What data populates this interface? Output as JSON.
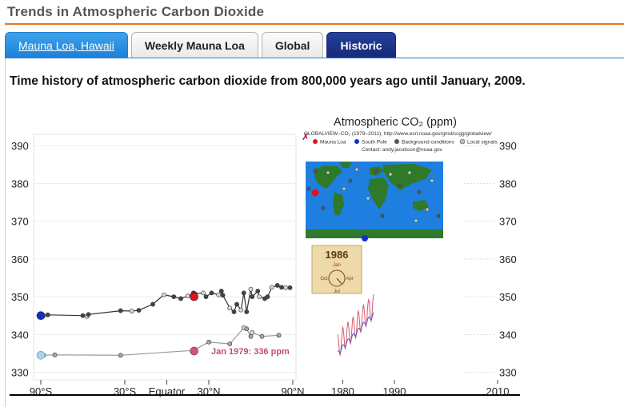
{
  "header": {
    "title": "Trends in Atmospheric Carbon Dioxide"
  },
  "tabs": [
    {
      "label": "Mauna Loa, Hawaii",
      "active": true
    },
    {
      "label": "Weekly Mauna Loa",
      "active": false
    },
    {
      "label": "Global",
      "active": false
    },
    {
      "label": "Historic",
      "active": false
    }
  ],
  "description": "Time history of atmospheric carbon dioxide from 800,000 years ago until January, 2009.",
  "colors": {
    "accent": "#e8731e",
    "tab_active": "#1b7fd6",
    "tab_dark": "#1c338a",
    "red_point": "#e8101a",
    "blue_point": "#1230c8",
    "annotation": "#c0506a",
    "ocean": "#1e7fe0",
    "land": "#2e7a2a",
    "clock_bg": "#eed9a8"
  },
  "chart_data": {
    "type": "line",
    "title": "Atmospheric CO₂ (ppm)",
    "yticks": [
      390,
      380,
      370,
      360,
      350,
      340,
      330
    ],
    "ylim": [
      328,
      393
    ],
    "latitude_axis": {
      "ticks": [
        "90°S",
        "30°S",
        "Equator",
        "30°N",
        "90°N"
      ],
      "tick_values": [
        -90,
        -30,
        0,
        30,
        90
      ],
      "xlim": [
        -90,
        90
      ]
    },
    "time_axis": {
      "ticks": [
        "1980",
        "1990",
        "2010"
      ],
      "tick_values": [
        1980,
        1990,
        2010
      ],
      "xlim": [
        1979,
        2010
      ]
    },
    "series": [
      {
        "name": "",
        "values_lat": [
          -88,
          -85,
          -60,
          -57,
          -56,
          -33,
          -25,
          -20,
          -10,
          -2,
          5,
          10,
          15,
          19,
          20,
          26,
          28,
          32,
          37,
          39,
          40,
          45,
          48,
          50,
          53,
          55,
          57,
          60,
          61,
          65,
          66,
          70,
          72,
          75,
          79,
          82,
          85,
          88
        ],
        "values_ppm": [
          345,
          345.2,
          345,
          344.8,
          345.3,
          346.3,
          346.2,
          346.4,
          348,
          350.5,
          350,
          349.5,
          350.2,
          351,
          350.8,
          351,
          350,
          351,
          350.5,
          351.5,
          350.4,
          347,
          346,
          348,
          346.5,
          351,
          346,
          352,
          350,
          351.5,
          350,
          349.5,
          350,
          352.5,
          353,
          352.5,
          352.4,
          352.4
        ]
      },
      {
        "name": "",
        "values_lat": [
          -88,
          -80,
          -33,
          19,
          30,
          45,
          55,
          57,
          60,
          61,
          68,
          80
        ],
        "values_ppm": [
          334.5,
          334.6,
          334.5,
          335.8,
          338,
          337.5,
          341.8,
          341.5,
          339.5,
          340.5,
          339.5,
          339.8
        ]
      }
    ],
    "highlighted_points": [
      {
        "label": "Mauna Loa",
        "lat": 19.5,
        "ppm": 350,
        "color": "#e8101a"
      },
      {
        "label": "South Pole",
        "lat": -90,
        "ppm": 345,
        "color": "#1230c8"
      }
    ],
    "annotation": "Jan 1979: 336 ppm",
    "legend": {
      "source": "GLOBALVIEW–CO₂ (1979–2011); http://www.esrl.noaa.gov/gmd/ccgg/globalview/",
      "items": [
        "Mauna Loa",
        "South Pole",
        "Background conditions",
        "Local signals"
      ],
      "contact": "Contact: andy.jacobson@noaa.gov"
    },
    "clock": {
      "year": "1986",
      "months": [
        "Jan",
        "Apr",
        "Jul",
        "Oct"
      ]
    },
    "time_series": [
      {
        "name": "Mauna Loa",
        "x": [
          1979,
          1980,
          1981,
          1982,
          1983,
          1984,
          1985,
          1986
        ],
        "y": [
          336.8,
          338.7,
          340.1,
          341.4,
          343.0,
          344.6,
          346.0,
          347.4
        ],
        "color": "#d65a6e"
      },
      {
        "name": "South Pole",
        "x": [
          1979,
          1980,
          1981,
          1982,
          1983,
          1984,
          1985,
          1986
        ],
        "y": [
          335.0,
          336.7,
          338.2,
          339.6,
          341.0,
          342.6,
          344.0,
          345.2
        ],
        "color": "#5a52c8"
      }
    ]
  }
}
